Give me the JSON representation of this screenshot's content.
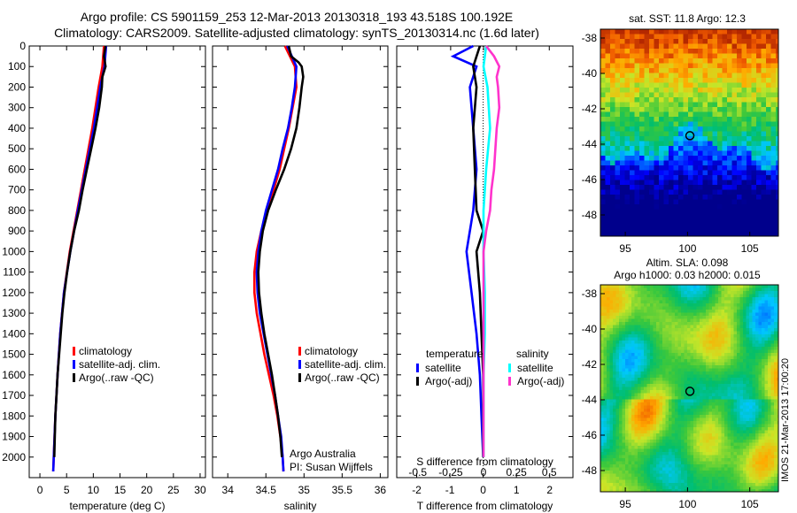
{
  "title_line1": "Argo profile: CS 5901159_253 12-Mar-2013 20130318_193 43.518S 100.192E",
  "title_line2": "Climatology: CARS2009. Satellite-adjusted climatology: synTS_20130314.nc (1.6d later)",
  "credit": {
    "line1": "Argo Australia",
    "line2": "PI: Susan Wijffels"
  },
  "stamp": "IMOS 21-Mar-2013 17:00:20",
  "colors": {
    "climatology": "#ff0000",
    "satellite": "#0000ff",
    "argo": "#000000",
    "sal_satellite": "#00ffff",
    "sal_argo": "#ff33cc"
  },
  "chart_data": [
    {
      "type": "line",
      "xlabel": "temperature (deg C)",
      "xlim": [
        -2,
        31
      ],
      "ylim": [
        2100,
        0
      ],
      "xticks": [
        "0",
        "5",
        "10",
        "15",
        "20",
        "25",
        "30"
      ],
      "yticks": [
        "0",
        "100",
        "200",
        "300",
        "400",
        "500",
        "600",
        "700",
        "800",
        "900",
        "1000",
        "1100",
        "1200",
        "1300",
        "1400",
        "1500",
        "1600",
        "1700",
        "1800",
        "1900",
        "2000"
      ],
      "legend": [
        "climatology",
        "satellite-adj. clim.",
        "Argo(..raw -QC)"
      ],
      "series": [
        {
          "name": "climatology",
          "depth": [
            0,
            100,
            200,
            400,
            600,
            800,
            1000,
            1200,
            1400,
            1600,
            1800,
            2000,
            2070
          ],
          "values": [
            12.0,
            11.7,
            11.0,
            9.8,
            8.4,
            7.0,
            5.6,
            4.5,
            3.8,
            3.3,
            2.9,
            2.6,
            2.5
          ]
        },
        {
          "name": "satellite-adj. clim.",
          "depth": [
            0,
            100,
            200,
            400,
            600,
            800,
            1000,
            1200,
            1400,
            1600,
            1800,
            2000,
            2070
          ],
          "values": [
            12.4,
            12.1,
            11.3,
            10.1,
            8.6,
            7.1,
            5.7,
            4.5,
            3.8,
            3.3,
            2.9,
            2.6,
            2.5
          ]
        },
        {
          "name": "Argo(..raw -QC)",
          "depth": [
            0,
            50,
            100,
            150,
            200,
            300,
            400,
            500,
            600,
            700,
            800,
            900,
            1000,
            1100,
            1200,
            1300,
            1400,
            1500,
            1600,
            1700,
            1800,
            1900,
            2000
          ],
          "values": [
            12.3,
            12.0,
            12.3,
            11.7,
            11.6,
            11.1,
            10.4,
            9.6,
            8.8,
            8.0,
            7.3,
            6.4,
            5.7,
            5.1,
            4.6,
            4.2,
            3.9,
            3.6,
            3.3,
            3.1,
            2.9,
            2.8,
            2.7
          ]
        }
      ]
    },
    {
      "type": "line",
      "xlabel": "salinity",
      "xlim": [
        33.8,
        36.1
      ],
      "ylim": [
        2100,
        0
      ],
      "xticks": [
        "34",
        "34.5",
        "35",
        "35.5",
        "36"
      ],
      "legend": [
        "climatology",
        "satellite-adj. clim.",
        "Argo(..raw -QC)"
      ],
      "series": [
        {
          "name": "climatology",
          "depth": [
            0,
            100,
            200,
            300,
            400,
            500,
            600,
            700,
            800,
            900,
            1000,
            1100,
            1200,
            1300,
            1400,
            1500,
            1600,
            1700,
            1800,
            1900,
            2000,
            2070
          ],
          "values": [
            34.75,
            34.88,
            34.9,
            34.85,
            34.8,
            34.74,
            34.68,
            34.6,
            34.52,
            34.44,
            34.38,
            34.35,
            34.35,
            34.38,
            34.43,
            34.48,
            34.54,
            34.6,
            34.65,
            34.69,
            34.72,
            34.73
          ]
        },
        {
          "name": "satellite-adj. clim.",
          "depth": [
            0,
            100,
            200,
            300,
            400,
            500,
            600,
            700,
            800,
            900,
            1000,
            1100,
            1200,
            1300,
            1400,
            1500,
            1600,
            1700,
            1800,
            1900,
            2000,
            2070
          ],
          "values": [
            34.78,
            34.9,
            34.88,
            34.84,
            34.79,
            34.72,
            34.66,
            34.58,
            34.5,
            34.44,
            34.4,
            34.38,
            34.39,
            34.42,
            34.47,
            34.52,
            34.57,
            34.62,
            34.66,
            34.7,
            34.72,
            34.73
          ]
        },
        {
          "name": "Argo(..raw -QC)",
          "depth": [
            0,
            50,
            80,
            100,
            150,
            200,
            300,
            400,
            500,
            600,
            700,
            800,
            900,
            1000,
            1100,
            1200,
            1300,
            1400,
            1500,
            1600,
            1700,
            1800,
            1900,
            2000
          ],
          "values": [
            34.8,
            34.83,
            34.93,
            34.97,
            34.99,
            34.97,
            34.94,
            34.9,
            34.83,
            34.74,
            34.63,
            34.53,
            34.46,
            34.42,
            34.4,
            34.41,
            34.44,
            34.48,
            34.53,
            34.58,
            34.62,
            34.66,
            34.69,
            34.71
          ]
        }
      ]
    },
    {
      "type": "line",
      "xlabel": "T difference from climatology",
      "xlabel_top": "S difference from climatology",
      "xlim": [
        -2.6,
        2.7
      ],
      "xlim_top": [
        -0.66,
        0.68
      ],
      "ylim": [
        2100,
        0
      ],
      "xticks": [
        "-2",
        "-1",
        "0",
        "1",
        "2"
      ],
      "xticks_top": [
        "-0.5",
        "-0.25",
        "0",
        "0.25",
        "0.5"
      ],
      "legend_groups": {
        "temperature": [
          "satellite",
          "Argo(-adj)"
        ],
        "salinity": [
          "satellite",
          "Argo(-adj)"
        ]
      },
      "series": [
        {
          "name": "satellite",
          "group": "temperature",
          "depth": [
            0,
            50,
            100,
            200,
            400,
            600,
            800,
            1000,
            1200,
            1400,
            1600,
            1800,
            2000
          ],
          "values": [
            -0.3,
            -0.9,
            -0.2,
            -0.4,
            -0.3,
            -0.2,
            -0.3,
            -0.5,
            -0.35,
            -0.2,
            -0.1,
            -0.05,
            0.0
          ]
        },
        {
          "name": "Argo(-adj)",
          "group": "temperature",
          "depth": [
            0,
            100,
            200,
            400,
            600,
            800,
            900,
            1000,
            1200,
            1400,
            1600,
            1800,
            2000
          ],
          "values": [
            -0.1,
            -0.3,
            -0.2,
            -0.3,
            -0.25,
            -0.2,
            0.0,
            -0.2,
            -0.1,
            -0.05,
            0.0,
            0.0,
            0.0
          ]
        },
        {
          "name": "satellite",
          "group": "salinity",
          "depth": [
            0,
            100,
            200,
            400,
            600,
            800,
            1000,
            1200,
            1400,
            1600,
            1800,
            2000
          ],
          "values": [
            0.02,
            0.0,
            0.03,
            0.05,
            0.02,
            0.0,
            0.0,
            0.01,
            0.01,
            0.0,
            0.0,
            0.0
          ]
        },
        {
          "name": "Argo(-adj)",
          "group": "salinity",
          "depth": [
            0,
            50,
            100,
            150,
            200,
            300,
            400,
            500,
            600,
            700,
            800,
            900,
            1000,
            1200,
            1400,
            1600,
            1800,
            2000
          ],
          "values": [
            0.02,
            0.08,
            0.12,
            0.1,
            0.11,
            0.12,
            0.1,
            0.09,
            0.08,
            0.06,
            0.05,
            0.02,
            0.0,
            0.0,
            0.0,
            0.0,
            0.0,
            0.0
          ]
        }
      ]
    },
    {
      "type": "heatmap",
      "title": "sat. SST: 11.8  Argo: 12.3",
      "xticks": [
        "95",
        "100",
        "105"
      ],
      "yticks": [
        "-38",
        "-40",
        "-42",
        "-44",
        "-46",
        "-48"
      ],
      "xlim": [
        93,
        107.3
      ],
      "ylim": [
        -49.2,
        -37.5
      ],
      "marker": {
        "lon": 100.19,
        "lat": -43.52
      }
    },
    {
      "type": "heatmap",
      "title": "Altim. SLA: 0.098",
      "subtitle": "Argo h1000: 0.03  h2000: 0.015",
      "xticks": [
        "95",
        "100",
        "105"
      ],
      "yticks": [
        "-38",
        "-40",
        "-42",
        "-44",
        "-46",
        "-48"
      ],
      "xlim": [
        93,
        107.3
      ],
      "ylim": [
        -49.2,
        -37.5
      ],
      "marker": {
        "lon": 100.19,
        "lat": -43.52
      }
    }
  ]
}
